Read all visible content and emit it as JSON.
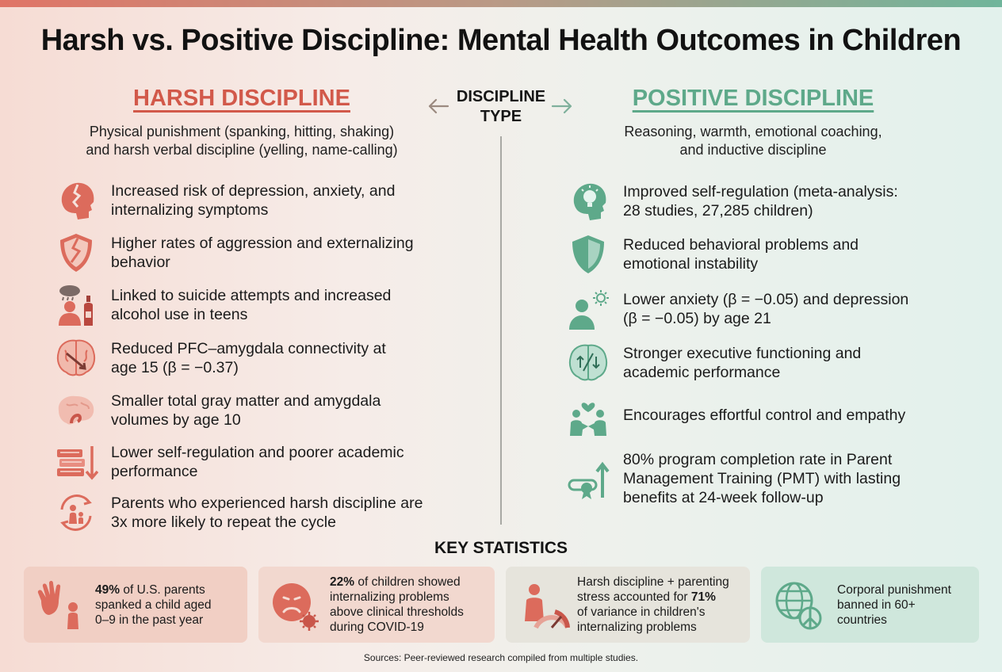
{
  "title": "Harsh vs. Positive Discipline: Mental Health Outcomes in Children",
  "center_label": [
    "DISCIPLINE",
    "TYPE"
  ],
  "harsh": {
    "heading": "HARSH DISCIPLINE",
    "subtitle": [
      "Physical punishment (spanking, hitting, shaking)",
      "and harsh verbal discipline (yelling, name-calling)"
    ],
    "items": [
      {
        "icon": "broken-head-icon",
        "lines": [
          "Increased risk of depression, anxiety, and",
          "internalizing symptoms"
        ]
      },
      {
        "icon": "cracked-shield-icon",
        "lines": [
          "Higher rates of aggression and externalizing",
          "behavior"
        ]
      },
      {
        "icon": "storm-cloud-bottle-icon",
        "lines": [
          "Linked to suicide attempts and increased",
          "alcohol use in teens"
        ]
      },
      {
        "icon": "brain-disconnect-icon",
        "lines": [
          "Reduced PFC–amygdala connectivity at",
          "age 15 (β = −0.37)"
        ]
      },
      {
        "icon": "brain-icon",
        "lines": [
          "Smaller total gray matter and amygdala",
          "volumes by age 10"
        ]
      },
      {
        "icon": "books-down-arrow-icon",
        "lines": [
          "Lower self-regulation and poorer academic",
          "performance"
        ]
      },
      {
        "icon": "cycle-family-icon",
        "lines": [
          "Parents who experienced harsh discipline are",
          "3x more likely to repeat the cycle"
        ]
      }
    ]
  },
  "positive": {
    "heading": "POSITIVE DISCIPLINE",
    "subtitle": [
      "Reasoning, warmth, emotional coaching,",
      "and inductive discipline"
    ],
    "items": [
      {
        "icon": "lightbulb-head-icon",
        "lines": [
          "Improved self-regulation (meta-analysis:",
          "28 studies, 27,285 children)"
        ]
      },
      {
        "icon": "shield-icon",
        "lines": [
          "Reduced behavioral problems and",
          "emotional instability"
        ]
      },
      {
        "icon": "person-sun-icon",
        "lines": [
          "Lower anxiety (β = −0.05) and depression",
          "(β = −0.05) by age 21"
        ]
      },
      {
        "icon": "brain-arrows-icon",
        "lines": [
          "Stronger executive functioning and",
          "academic performance"
        ]
      },
      {
        "icon": "holding-hands-heart-icon",
        "lines": [
          "Encourages effortful control and empathy"
        ]
      },
      {
        "icon": "certificate-up-arrow-icon",
        "lines": [
          "80% program completion rate in Parent",
          "Management Training (PMT) with lasting",
          "benefits at 24-week follow-up"
        ]
      }
    ]
  },
  "key_stats": {
    "heading": "KEY STATISTICS",
    "cards": [
      {
        "icon": "hand-child-icon",
        "bold": "49%",
        "rest_first": " of U.S. parents",
        "lines": [
          "spanked a child aged",
          "0–9 in the past year"
        ]
      },
      {
        "icon": "sad-face-virus-icon",
        "bold": "22%",
        "rest_first": " of children showed",
        "lines": [
          "internalizing problems",
          "above clinical thresholds",
          "during COVID-19"
        ]
      },
      {
        "icon": "stressed-parent-gauge-icon",
        "pre_lines": [
          "Harsh discipline + parenting",
          "stress accounted for "
        ],
        "bold": "71%",
        "lines": [
          "of variance in children's",
          "internalizing problems"
        ]
      },
      {
        "icon": "globe-peace-icon",
        "lines": [
          "Corporal punishment",
          "banned in 60+",
          "countries"
        ]
      }
    ]
  },
  "sources": "Sources: Peer-reviewed research compiled from multiple studies.",
  "colors": {
    "harsh": "#d2594a",
    "positive": "#5ea98a"
  }
}
